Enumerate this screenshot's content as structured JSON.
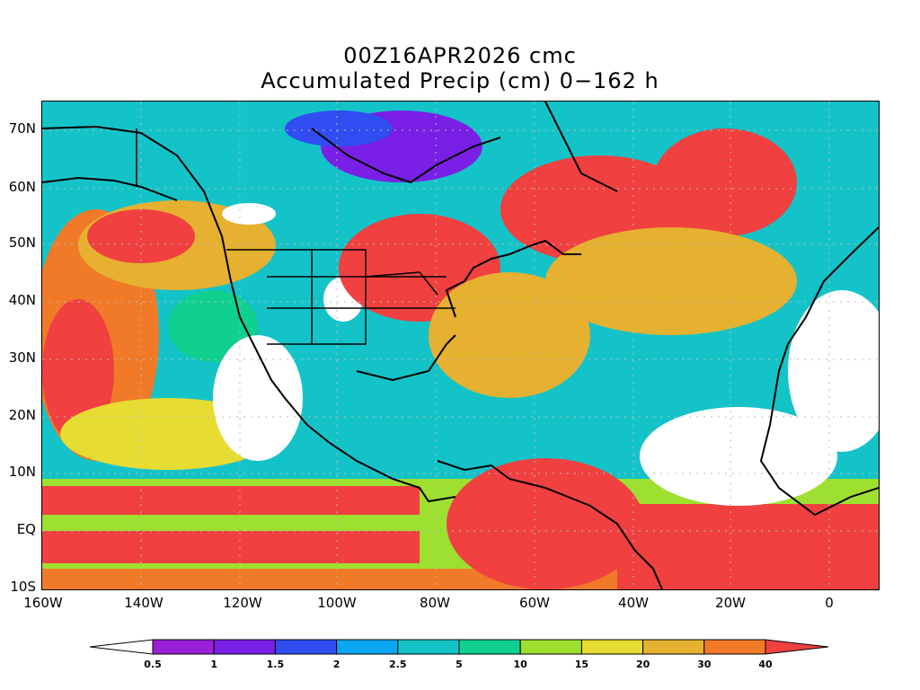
{
  "title_line1": "00Z16APR2026 cmc",
  "title_line2": "Accumulated Precip (cm) 0−162 h",
  "lat_labels": [
    "70N",
    "60N",
    "50N",
    "40N",
    "30N",
    "20N",
    "10N",
    "EQ",
    "10S"
  ],
  "lon_labels": [
    "160W",
    "140W",
    "120W",
    "100W",
    "80W",
    "60W",
    "40W",
    "20W",
    "0"
  ],
  "colorbar": {
    "colors": [
      "#ffffff",
      "#9b1fd6",
      "#7a1fe6",
      "#2f4df0",
      "#0aa6f0",
      "#14c3c8",
      "#10d090",
      "#9ee030",
      "#e6dc32",
      "#e6b030",
      "#f07a28",
      "#f04040"
    ],
    "labels": [
      "0.5",
      "1",
      "1.5",
      "2",
      "2.5",
      "5",
      "10",
      "15",
      "20",
      "30",
      "40"
    ]
  }
}
